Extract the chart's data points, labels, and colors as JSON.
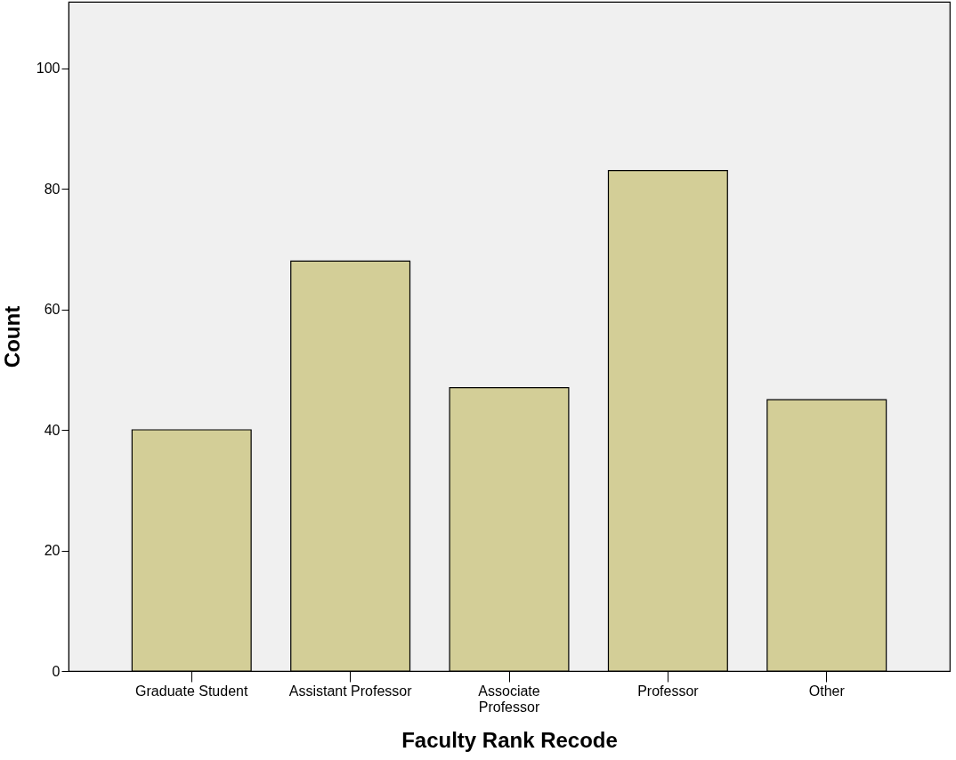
{
  "chart_data": {
    "type": "bar",
    "xlabel": "Faculty Rank Recode",
    "ylabel": "Count",
    "categories": [
      "Graduate Student",
      "Assistant Professor",
      "Associate\nProfessor",
      "Professor",
      "Other"
    ],
    "values": [
      40,
      68,
      47,
      83,
      45
    ],
    "color": "#d3ce97",
    "ylim": [
      0,
      111
    ],
    "yticks": [
      0,
      20,
      40,
      60,
      80,
      100
    ],
    "grid": false
  }
}
